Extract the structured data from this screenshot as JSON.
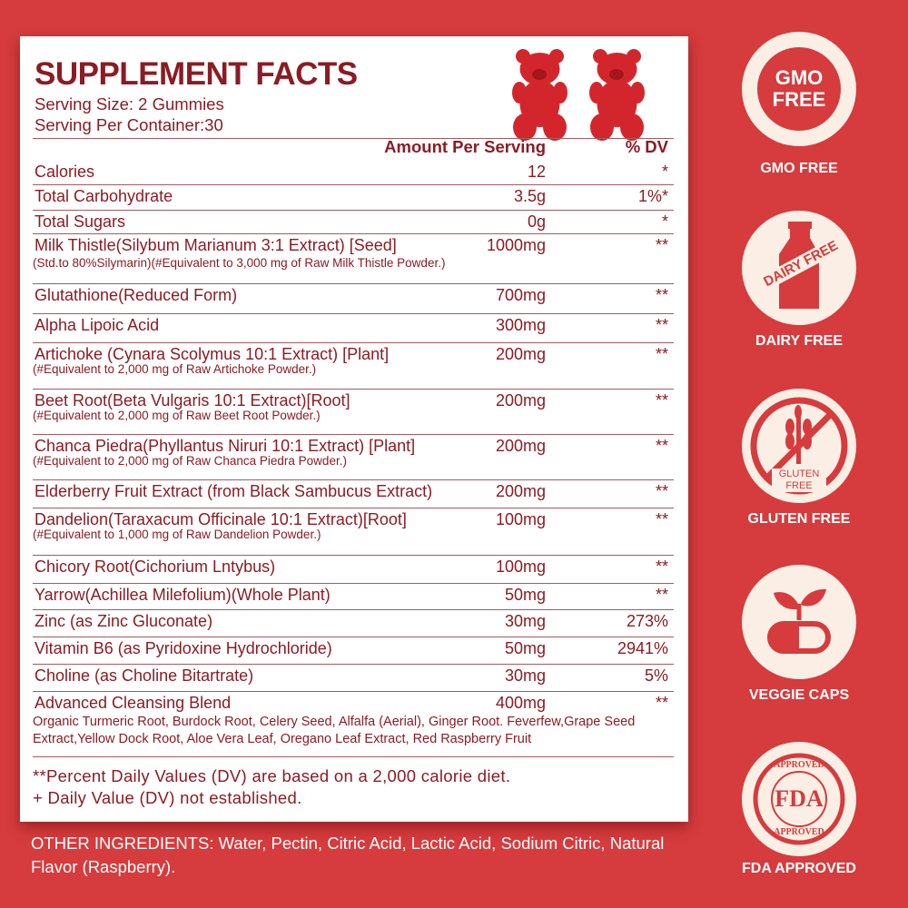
{
  "panel": {
    "title": "SUPPLEMENT FACTS",
    "serving_size": "Serving Size: 2 Gummies",
    "serving_per_container": "Serving Per Container:30",
    "header_amount": "Amount Per Serving",
    "header_dv": "% DV",
    "rows": [
      {
        "name": "Calories",
        "amount": "12",
        "dv": "*"
      },
      {
        "name": "Total Carbohydrate",
        "amount": "3.5g",
        "dv": "1%*"
      },
      {
        "name": "Total Sugars",
        "amount": "0g",
        "dv": "*"
      },
      {
        "name": "Milk Thistle(Silybum Marianum 3:1 Extract) [Seed]",
        "amount": "1000mg",
        "dv": "**",
        "sub": "(Std.to 80%Silymarin)(#Equivalent to 3,000 mg of Raw Milk Thistle Powder.)"
      },
      {
        "name": "Glutathione(Reduced Form)",
        "amount": "700mg",
        "dv": "**"
      },
      {
        "name": "Alpha Lipoic Acid",
        "amount": "300mg",
        "dv": "**"
      },
      {
        "name": "Artichoke (Cynara Scolymus 10:1 Extract) [Plant]",
        "amount": "200mg",
        "dv": "**",
        "sub": "(#Equivalent to 2,000 mg of Raw Artichoke Powder.)"
      },
      {
        "name": "Beet Root(Beta Vulgaris 10:1 Extract)[Root]",
        "amount": "200mg",
        "dv": "**",
        "sub": "(#Equivalent to 2,000 mg of Raw Beet Root Powder.)"
      },
      {
        "name": "Chanca Piedra(Phyllantus Niruri 10:1 Extract) [Plant]",
        "amount": "200mg",
        "dv": "**",
        "sub": "(#Equivalent to 2,000 mg of Raw Chanca Piedra Powder.)"
      },
      {
        "name": "Elderberry Fruit Extract (from Black Sambucus Extract)",
        "amount": "200mg",
        "dv": "**"
      },
      {
        "name": "Dandelion(Taraxacum Officinale 10:1 Extract)[Root]",
        "amount": "100mg",
        "dv": "**",
        "sub": "(#Equivalent to 1,000 mg of Raw Dandelion Powder.)"
      },
      {
        "name": "Chicory Root(Cichorium Lntybus)",
        "amount": "100mg",
        "dv": "**"
      },
      {
        "name": "Yarrow(Achillea Milefolium)(Whole Plant)",
        "amount": "50mg",
        "dv": "**"
      },
      {
        "name": "Zinc (as Zinc Gluconate)",
        "amount": "30mg",
        "dv": "273%"
      },
      {
        "name": "Vitamin B6 (as Pyridoxine Hydrochloride)",
        "amount": "50mg",
        "dv": "2941%"
      },
      {
        "name": "Choline (as Choline Bitartrate)",
        "amount": "30mg",
        "dv": "5%"
      },
      {
        "name": "Advanced Cleansing Blend",
        "amount": "400mg",
        "dv": "**",
        "blend": "Organic Turmeric Root, Burdock Root, Celery Seed, Alfalfa (Aerial), Ginger Root. Feverfew,Grape Seed Extract,Yellow Dock Root, Aloe Vera Leaf, Oregano Leaf Extract, Red Raspberry Fruit"
      }
    ],
    "footnote1": "**Percent Daily Values (DV) are based on a 2,000 calorie diet.",
    "footnote2": "+ Daily Value (DV) not established."
  },
  "other_ingredients": "OTHER INGREDIENTS: Water, Pectin, Citric Acid, Lactic Acid, Sodium Citric, Natural Flavor (Raspberry).",
  "badges": [
    {
      "icon": "gmo-free-icon",
      "icon_text": "GMO FREE",
      "label": "GMO FREE"
    },
    {
      "icon": "dairy-free-bottle-icon",
      "icon_text": "DAIRY FREE",
      "label": "DAIRY FREE"
    },
    {
      "icon": "gluten-free-wheat-icon",
      "icon_text": "GLUTEN FREE",
      "label": "GLUTEN FREE"
    },
    {
      "icon": "veggie-caps-icon",
      "label": "VEGGIE CAPS"
    },
    {
      "icon": "fda-approved-seal-icon",
      "icon_text": "FDA",
      "seal_text": "APPROVED",
      "label": "FDA APPROVED"
    }
  ],
  "colors": {
    "background": "#d63b3d",
    "text": "#8c1b23",
    "badge": "#fbefe5"
  }
}
